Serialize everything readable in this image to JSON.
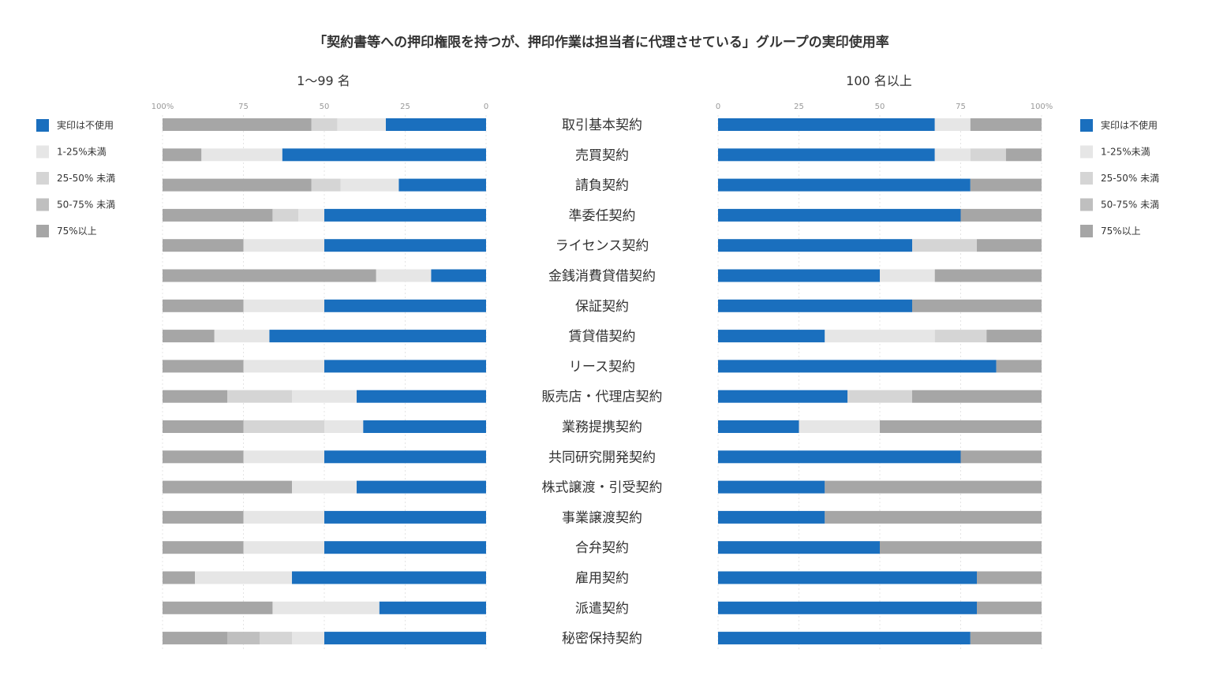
{
  "chart_data": {
    "type": "bar",
    "orientation": "horizontal-stacked-percent",
    "title": "「契約書等への押印権限を持つが、押印作業は担当者に代理させている」グループの実印使用率",
    "categories": [
      "取引基本契約",
      "売買契約",
      "請負契約",
      "準委任契約",
      "ライセンス契約",
      "金銭消費貸借契約",
      "保証契約",
      "賃貸借契約",
      "リース契約",
      "販売店・代理店契約",
      "業務提携契約",
      "共同研究開発契約",
      "株式譲渡・引受契約",
      "事業譲渡契約",
      "合弁契約",
      "雇用契約",
      "派遣契約",
      "秘密保持契約"
    ],
    "legend": [
      "実印は不使用",
      "1-25%未満",
      "25-50% 未満",
      "50-75% 未満",
      "75%以上"
    ],
    "colors": [
      "#1a6fbe",
      "#e6e6e6",
      "#d5d5d5",
      "#bfbfbf",
      "#a6a6a6"
    ],
    "xlim": [
      0,
      100
    ],
    "panels": [
      {
        "title": "1〜99 名",
        "direction": "right-to-left",
        "ticks": [
          "100%",
          "75",
          "50",
          "25",
          "0"
        ],
        "series": [
          {
            "name": "実印は不使用",
            "values": [
              31,
              63,
              27,
              50,
              50,
              17,
              50,
              67,
              50,
              40,
              38,
              50,
              40,
              50,
              50,
              60,
              33,
              50
            ]
          },
          {
            "name": "1-25%未満",
            "values": [
              15,
              25,
              18,
              8,
              25,
              17,
              25,
              17,
              25,
              20,
              12,
              25,
              20,
              25,
              25,
              30,
              33,
              10
            ]
          },
          {
            "name": "25-50% 未満",
            "values": [
              8,
              0,
              9,
              8,
              0,
              0,
              0,
              0,
              0,
              20,
              25,
              0,
              0,
              0,
              0,
              0,
              0,
              10
            ]
          },
          {
            "name": "50-75% 未満",
            "values": [
              0,
              0,
              0,
              0,
              0,
              0,
              0,
              0,
              0,
              0,
              0,
              0,
              0,
              0,
              0,
              0,
              0,
              10
            ]
          },
          {
            "name": "75%以上",
            "values": [
              46,
              12,
              46,
              34,
              25,
              66,
              25,
              16,
              25,
              20,
              25,
              25,
              40,
              25,
              25,
              10,
              34,
              20
            ]
          }
        ]
      },
      {
        "title": "100 名以上",
        "direction": "left-to-right",
        "ticks": [
          "0",
          "25",
          "50",
          "75",
          "100%"
        ],
        "series": [
          {
            "name": "実印は不使用",
            "values": [
              67,
              67,
              78,
              75,
              60,
              50,
              60,
              33,
              86,
              40,
              25,
              75,
              33,
              33,
              50,
              80,
              80,
              78
            ]
          },
          {
            "name": "1-25%未満",
            "values": [
              11,
              11,
              0,
              0,
              0,
              17,
              0,
              34,
              0,
              0,
              25,
              0,
              0,
              0,
              0,
              0,
              0,
              0
            ]
          },
          {
            "name": "25-50% 未満",
            "values": [
              0,
              11,
              0,
              0,
              20,
              0,
              0,
              16,
              0,
              20,
              0,
              0,
              0,
              0,
              0,
              0,
              0,
              0
            ]
          },
          {
            "name": "50-75% 未満",
            "values": [
              0,
              0,
              0,
              0,
              0,
              0,
              0,
              0,
              0,
              0,
              0,
              0,
              0,
              0,
              0,
              0,
              0,
              0
            ]
          },
          {
            "name": "75%以上",
            "values": [
              22,
              11,
              22,
              25,
              20,
              33,
              40,
              17,
              14,
              40,
              50,
              25,
              67,
              67,
              50,
              20,
              20,
              22
            ]
          }
        ]
      }
    ]
  }
}
